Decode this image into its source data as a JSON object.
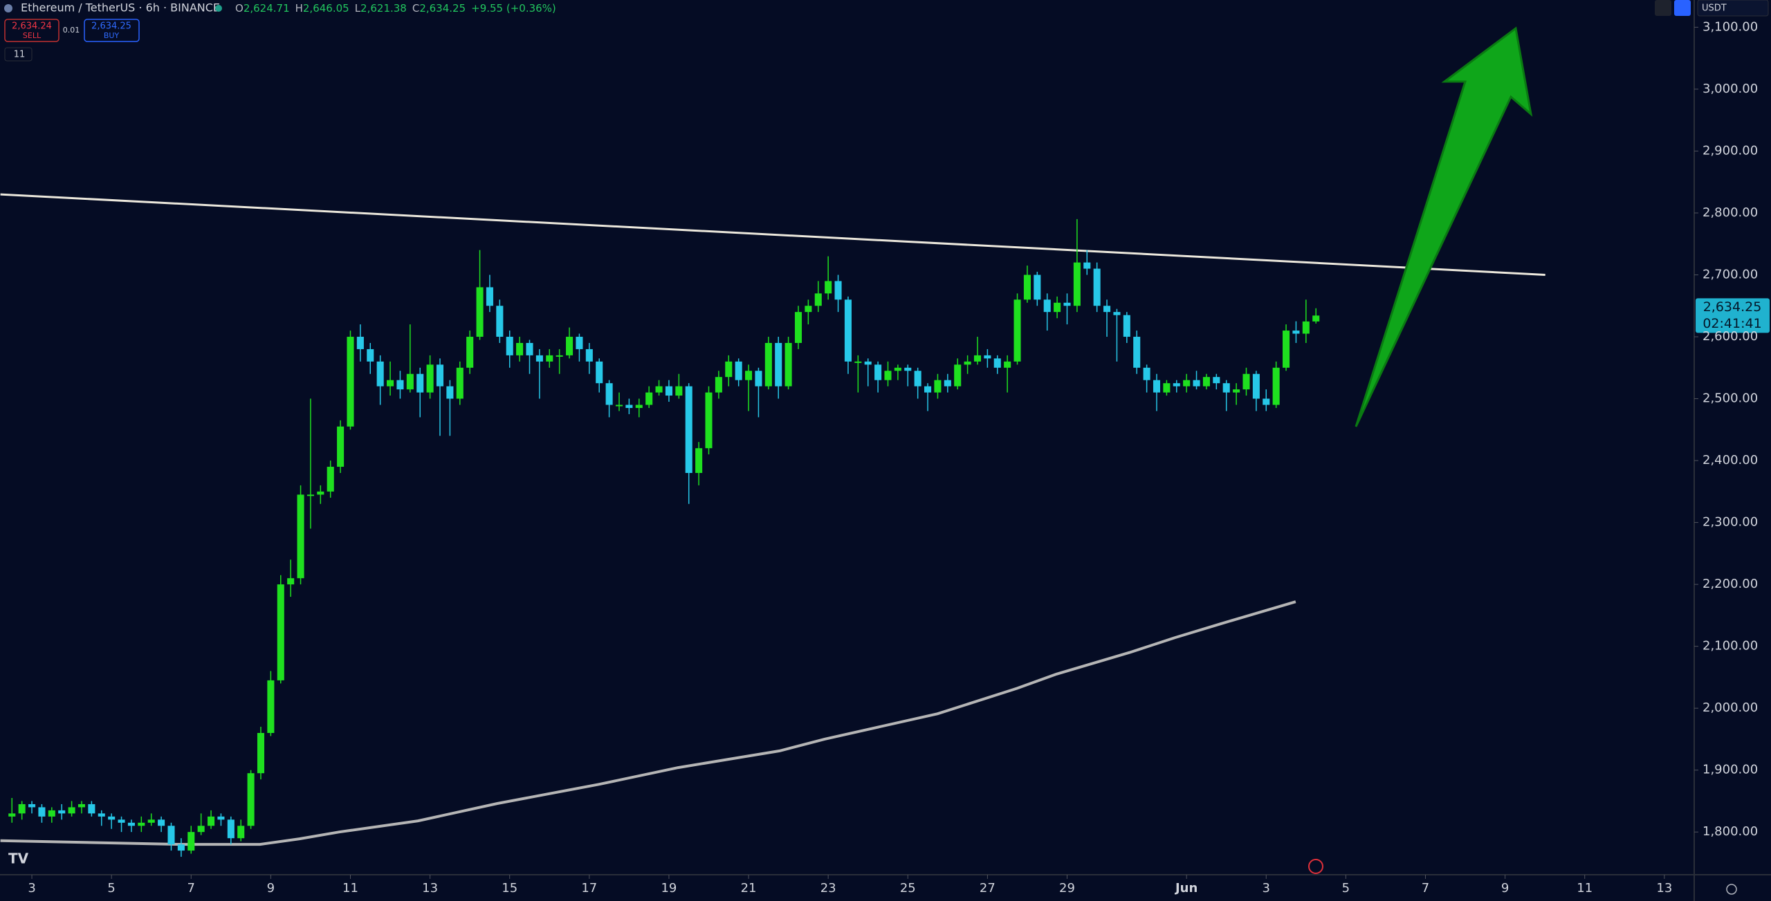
{
  "header": {
    "symbol": "Ethereum / TetherUS · 6h · BINANCE",
    "o_label": "O",
    "o": "2,624.71",
    "h_label": "H",
    "h": "2,646.05",
    "l_label": "L",
    "l": "2,621.38",
    "c_label": "C",
    "c": "2,634.25",
    "change": "+9.55 (+0.36%)",
    "sell_price": "2,634.24",
    "sell": "SELL",
    "quantity": "0.01",
    "buy_price": "2,634.25",
    "buy": "BUY",
    "indicators": "11",
    "currency": "USDT",
    "price_tag": "2,634.25",
    "countdown": "02:41:41"
  },
  "chart_data": {
    "type": "candlestick",
    "up_color": "#1fe01f",
    "down_color": "#27c8e8",
    "x": [
      2.5,
      2.75,
      3,
      3.25,
      3.5,
      3.75,
      4,
      4.25,
      4.5,
      4.75,
      5,
      5.25,
      5.5,
      5.75,
      6,
      6.25,
      6.5,
      6.75,
      7,
      7.25,
      7.5,
      7.75,
      8,
      8.25,
      8.5,
      8.75,
      9,
      9.25,
      9.5,
      9.75,
      10,
      10.25,
      10.5,
      10.75,
      11,
      11.25,
      11.5,
      11.75,
      12,
      12.25,
      12.5,
      12.75,
      13,
      13.25,
      13.5,
      13.75,
      14,
      14.25,
      14.5,
      14.75,
      15,
      15.25,
      15.5,
      15.75,
      16,
      16.25,
      16.5,
      16.75,
      17,
      17.25,
      17.5,
      17.75,
      18,
      18.25,
      18.5,
      18.75,
      19,
      19.25,
      19.5,
      19.75,
      20,
      20.25,
      20.5,
      20.75,
      21,
      21.25,
      21.5,
      21.75,
      22,
      22.25,
      22.5,
      22.75,
      23,
      23.25,
      23.5,
      23.75,
      24,
      24.25,
      24.5,
      24.75,
      25,
      25.25,
      25.5,
      25.75,
      26,
      26.25,
      26.5,
      26.75,
      27,
      27.25,
      27.5,
      27.75,
      28,
      28.25,
      28.5,
      28.75,
      29,
      29.25,
      29.5,
      29.75,
      30,
      30.25,
      30.5,
      30.75,
      31,
      31.25,
      31.5,
      31.75,
      32,
      32.25,
      32.5,
      32.75,
      33,
      33.25,
      33.5,
      33.75,
      34,
      34.25,
      34.5,
      34.75,
      35,
      35.25
    ],
    "ohlc": [
      [
        1825,
        1855,
        1815,
        1830
      ],
      [
        1830,
        1850,
        1820,
        1845
      ],
      [
        1845,
        1850,
        1830,
        1840
      ],
      [
        1840,
        1845,
        1815,
        1825
      ],
      [
        1825,
        1840,
        1815,
        1835
      ],
      [
        1835,
        1845,
        1820,
        1830
      ],
      [
        1830,
        1850,
        1825,
        1840
      ],
      [
        1840,
        1850,
        1830,
        1845
      ],
      [
        1845,
        1850,
        1825,
        1830
      ],
      [
        1830,
        1835,
        1810,
        1825
      ],
      [
        1825,
        1830,
        1805,
        1820
      ],
      [
        1820,
        1825,
        1800,
        1815
      ],
      [
        1815,
        1820,
        1800,
        1810
      ],
      [
        1810,
        1825,
        1800,
        1815
      ],
      [
        1815,
        1830,
        1810,
        1820
      ],
      [
        1820,
        1825,
        1800,
        1810
      ],
      [
        1810,
        1815,
        1770,
        1780
      ],
      [
        1780,
        1790,
        1760,
        1770
      ],
      [
        1770,
        1810,
        1765,
        1800
      ],
      [
        1800,
        1830,
        1795,
        1810
      ],
      [
        1810,
        1835,
        1805,
        1825
      ],
      [
        1825,
        1830,
        1810,
        1820
      ],
      [
        1820,
        1825,
        1780,
        1790
      ],
      [
        1790,
        1820,
        1785,
        1810
      ],
      [
        1810,
        1900,
        1805,
        1895
      ],
      [
        1895,
        1970,
        1885,
        1960
      ],
      [
        1960,
        2060,
        1955,
        2045
      ],
      [
        2045,
        2215,
        2040,
        2200
      ],
      [
        2200,
        2240,
        2180,
        2210
      ],
      [
        2210,
        2360,
        2200,
        2345
      ],
      [
        2345,
        2500,
        2290,
        2345
      ],
      [
        2345,
        2360,
        2330,
        2350
      ],
      [
        2350,
        2400,
        2340,
        2390
      ],
      [
        2390,
        2465,
        2380,
        2455
      ],
      [
        2455,
        2610,
        2450,
        2600
      ],
      [
        2600,
        2620,
        2560,
        2580
      ],
      [
        2580,
        2590,
        2540,
        2560
      ],
      [
        2560,
        2570,
        2490,
        2520
      ],
      [
        2520,
        2560,
        2505,
        2530
      ],
      [
        2530,
        2545,
        2500,
        2515
      ],
      [
        2515,
        2620,
        2510,
        2540
      ],
      [
        2540,
        2550,
        2470,
        2510
      ],
      [
        2510,
        2570,
        2500,
        2555
      ],
      [
        2555,
        2565,
        2440,
        2520
      ],
      [
        2520,
        2530,
        2440,
        2500
      ],
      [
        2500,
        2560,
        2490,
        2550
      ],
      [
        2550,
        2610,
        2540,
        2600
      ],
      [
        2600,
        2740,
        2595,
        2680
      ],
      [
        2680,
        2700,
        2640,
        2650
      ],
      [
        2650,
        2660,
        2590,
        2600
      ],
      [
        2600,
        2610,
        2550,
        2570
      ],
      [
        2570,
        2600,
        2560,
        2590
      ],
      [
        2590,
        2595,
        2540,
        2570
      ],
      [
        2570,
        2580,
        2500,
        2560
      ],
      [
        2560,
        2580,
        2550,
        2570
      ],
      [
        2570,
        2580,
        2540,
        2570
      ],
      [
        2570,
        2615,
        2565,
        2600
      ],
      [
        2600,
        2605,
        2560,
        2580
      ],
      [
        2580,
        2590,
        2540,
        2560
      ],
      [
        2560,
        2565,
        2510,
        2525
      ],
      [
        2525,
        2530,
        2470,
        2490
      ],
      [
        2490,
        2510,
        2480,
        2490
      ],
      [
        2490,
        2500,
        2475,
        2485
      ],
      [
        2485,
        2500,
        2470,
        2490
      ],
      [
        2490,
        2520,
        2485,
        2510
      ],
      [
        2510,
        2530,
        2505,
        2520
      ],
      [
        2520,
        2530,
        2495,
        2505
      ],
      [
        2505,
        2540,
        2500,
        2520
      ],
      [
        2520,
        2525,
        2330,
        2380
      ],
      [
        2380,
        2430,
        2360,
        2420
      ],
      [
        2420,
        2520,
        2410,
        2510
      ],
      [
        2510,
        2545,
        2500,
        2535
      ],
      [
        2535,
        2570,
        2520,
        2560
      ],
      [
        2560,
        2565,
        2520,
        2530
      ],
      [
        2530,
        2555,
        2480,
        2545
      ],
      [
        2545,
        2550,
        2470,
        2520
      ],
      [
        2520,
        2600,
        2515,
        2590
      ],
      [
        2590,
        2600,
        2500,
        2520
      ],
      [
        2520,
        2600,
        2515,
        2590
      ],
      [
        2590,
        2650,
        2580,
        2640
      ],
      [
        2640,
        2660,
        2620,
        2650
      ],
      [
        2650,
        2690,
        2640,
        2670
      ],
      [
        2670,
        2730,
        2660,
        2690
      ],
      [
        2690,
        2700,
        2640,
        2660
      ],
      [
        2660,
        2665,
        2540,
        2560
      ],
      [
        2560,
        2570,
        2510,
        2560
      ],
      [
        2560,
        2565,
        2520,
        2555
      ],
      [
        2555,
        2560,
        2510,
        2530
      ],
      [
        2530,
        2560,
        2520,
        2545
      ],
      [
        2545,
        2555,
        2530,
        2550
      ],
      [
        2550,
        2555,
        2520,
        2545
      ],
      [
        2545,
        2550,
        2500,
        2520
      ],
      [
        2520,
        2525,
        2480,
        2510
      ],
      [
        2510,
        2540,
        2500,
        2530
      ],
      [
        2530,
        2540,
        2510,
        2520
      ],
      [
        2520,
        2565,
        2515,
        2555
      ],
      [
        2555,
        2570,
        2540,
        2560
      ],
      [
        2560,
        2600,
        2555,
        2570
      ],
      [
        2570,
        2580,
        2550,
        2565
      ],
      [
        2565,
        2570,
        2540,
        2550
      ],
      [
        2550,
        2570,
        2510,
        2560
      ],
      [
        2560,
        2670,
        2555,
        2660
      ],
      [
        2660,
        2715,
        2655,
        2700
      ],
      [
        2700,
        2705,
        2650,
        2660
      ],
      [
        2660,
        2670,
        2610,
        2640
      ],
      [
        2640,
        2665,
        2630,
        2655
      ],
      [
        2655,
        2670,
        2620,
        2650
      ],
      [
        2650,
        2790,
        2640,
        2720
      ],
      [
        2720,
        2740,
        2700,
        2710
      ],
      [
        2710,
        2720,
        2640,
        2650
      ],
      [
        2650,
        2660,
        2600,
        2640
      ],
      [
        2640,
        2645,
        2560,
        2635
      ],
      [
        2635,
        2640,
        2590,
        2600
      ],
      [
        2600,
        2610,
        2540,
        2550
      ],
      [
        2550,
        2555,
        2510,
        2530
      ],
      [
        2530,
        2540,
        2480,
        2510
      ],
      [
        2510,
        2530,
        2505,
        2525
      ],
      [
        2525,
        2530,
        2510,
        2520
      ],
      [
        2520,
        2540,
        2510,
        2530
      ],
      [
        2530,
        2545,
        2515,
        2520
      ],
      [
        2520,
        2540,
        2515,
        2535
      ],
      [
        2535,
        2540,
        2515,
        2525
      ],
      [
        2525,
        2530,
        2480,
        2510
      ],
      [
        2510,
        2525,
        2490,
        2515
      ],
      [
        2515,
        2550,
        2505,
        2540
      ],
      [
        2540,
        2545,
        2480,
        2500
      ],
      [
        2500,
        2515,
        2480,
        2490
      ],
      [
        2490,
        2560,
        2485,
        2550
      ],
      [
        2550,
        2620,
        2545,
        2610
      ],
      [
        2610,
        2625,
        2590,
        2605
      ],
      [
        2605,
        2660,
        2590,
        2624.71
      ],
      [
        2624.71,
        2646.05,
        2621.38,
        2634.25
      ]
    ],
    "ma": {
      "color": "#b5b5b5",
      "x": [
        2.21,
        6.74,
        8.73,
        9.72,
        10.72,
        12.7,
        14.69,
        17.24,
        19.23,
        21.78,
        22.91,
        25.75,
        27.74,
        28.73,
        30.57,
        31.71,
        32.84,
        34.74
      ],
      "values": [
        1786,
        1780,
        1780,
        1789,
        1800,
        1818,
        1846,
        1877,
        1904,
        1931,
        1950,
        1991,
        2032,
        2055,
        2090,
        2114,
        2136,
        2172
      ]
    },
    "trendline": {
      "color": "#ece8dc",
      "x": [
        2.21,
        41.01
      ],
      "values": [
        2830,
        2700
      ]
    },
    "xlim": [
      2.2,
      44.75
    ],
    "xticks": [
      3,
      5,
      7,
      9,
      11,
      13,
      15,
      17,
      19,
      21,
      23,
      25,
      27,
      29,
      {
        "value": 32,
        "label": "Jun"
      },
      {
        "value": 34,
        "label": "3"
      },
      {
        "value": 36,
        "label": "5"
      },
      {
        "value": 38,
        "label": "7"
      },
      {
        "value": 40,
        "label": "9"
      },
      {
        "value": 42,
        "label": "11"
      },
      {
        "value": 44,
        "label": "13"
      }
    ],
    "ylim": [
      1731,
      3144
    ],
    "yticks": [
      {
        "value": 1800,
        "label": "1,800.00"
      },
      {
        "value": 1900,
        "label": "1,900.00"
      },
      {
        "value": 2000,
        "label": "2,000.00"
      },
      {
        "value": 2100,
        "label": "2,100.00"
      },
      {
        "value": 2200,
        "label": "2,200.00"
      },
      {
        "value": 2300,
        "label": "2,300.00"
      },
      {
        "value": 2400,
        "label": "2,400.00"
      },
      {
        "value": 2500,
        "label": "2,500.00"
      },
      {
        "value": 2600,
        "label": "2,600.00"
      },
      {
        "value": 2700,
        "label": "2,700.00"
      },
      {
        "value": 2800,
        "label": "2,800.00"
      },
      {
        "value": 2900,
        "label": "2,900.00"
      },
      {
        "value": 3000,
        "label": "3,000.00"
      },
      {
        "value": 3100,
        "label": "3,100.00"
      }
    ]
  }
}
